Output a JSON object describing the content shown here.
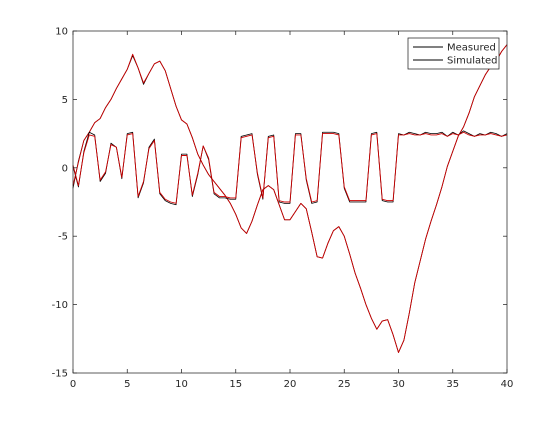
{
  "chart_data": {
    "type": "line",
    "title": "",
    "xlabel": "",
    "ylabel": "",
    "xlim": [
      0,
      40
    ],
    "ylim": [
      -15,
      10
    ],
    "xticks": [
      0,
      5,
      10,
      15,
      20,
      25,
      30,
      35,
      40
    ],
    "yticks": [
      -15,
      -10,
      -5,
      0,
      5,
      10
    ],
    "grid": false,
    "legend": {
      "position": "top-right",
      "entries": [
        "Measured",
        "Simulated"
      ]
    },
    "series": [
      {
        "name": "Measured",
        "color": "#000000",
        "role": "signal-1",
        "x": [
          0,
          0.5,
          1,
          1.5,
          2,
          2.5,
          3,
          3.5,
          4,
          4.5,
          5,
          5.5,
          6,
          6.5,
          7,
          7.5,
          8,
          8.5,
          9,
          9.5,
          10,
          10.5,
          11,
          11.5,
          12,
          12.5,
          13,
          13.5,
          14,
          14.5,
          15,
          15.5,
          16,
          16.5,
          17,
          17.5,
          18,
          18.5,
          19,
          19.5,
          20,
          20.5,
          21,
          21.5,
          22,
          22.5,
          23,
          23.5,
          24,
          24.5,
          25,
          25.5,
          26,
          26.5,
          27,
          27.5,
          28,
          28.5,
          29,
          29.5,
          30,
          30.5,
          31,
          31.5,
          32,
          32.5,
          33,
          33.5,
          34,
          34.5,
          35,
          35.5,
          36,
          36.5,
          37,
          37.5,
          38,
          38.5,
          39,
          39.5,
          40
        ],
        "y": [
          -1.5,
          0.5,
          2.0,
          2.6,
          3.3,
          3.6,
          4.4,
          5.0,
          5.8,
          6.5,
          7.2,
          8.2,
          7.3,
          6.1,
          6.9,
          7.6,
          7.8,
          7.1,
          5.8,
          4.5,
          3.5,
          3.2,
          2.2,
          1.0,
          0.2,
          -0.5,
          -1.0,
          -1.5,
          -2.0,
          -2.6,
          -3.4,
          -4.4,
          -4.8,
          -3.9,
          -2.7,
          -1.6,
          -1.3,
          -1.6,
          -2.7,
          -3.8,
          -3.8,
          -3.2,
          -2.6,
          -3.0,
          -4.7,
          -6.5,
          -6.6,
          -5.5,
          -4.6,
          -4.3,
          -5.0,
          -6.3,
          -7.7,
          -8.8,
          -10.0,
          -11.0,
          -11.8,
          -11.2,
          -11.1,
          -12.2,
          -13.5,
          -12.6,
          -10.6,
          -8.4,
          -6.8,
          -5.2,
          -3.9,
          -2.7,
          -1.4,
          0.1,
          1.2,
          2.3,
          3.0,
          4.0,
          5.2,
          6.0,
          6.8,
          7.4,
          7.8,
          8.5,
          9.0
        ]
      },
      {
        "name": "Simulated",
        "color": "#cc0000",
        "role": "signal-1",
        "x": [
          0,
          0.5,
          1,
          1.5,
          2,
          2.5,
          3,
          3.5,
          4,
          4.5,
          5,
          5.5,
          6,
          6.5,
          7,
          7.5,
          8,
          8.5,
          9,
          9.5,
          10,
          10.5,
          11,
          11.5,
          12,
          12.5,
          13,
          13.5,
          14,
          14.5,
          15,
          15.5,
          16,
          16.5,
          17,
          17.5,
          18,
          18.5,
          19,
          19.5,
          20,
          20.5,
          21,
          21.5,
          22,
          22.5,
          23,
          23.5,
          24,
          24.5,
          25,
          25.5,
          26,
          26.5,
          27,
          27.5,
          28,
          28.5,
          29,
          29.5,
          30,
          30.5,
          31,
          31.5,
          32,
          32.5,
          33,
          33.5,
          34,
          34.5,
          35,
          35.5,
          36,
          36.5,
          37,
          37.5,
          38,
          38.5,
          39,
          39.5,
          40
        ],
        "y": [
          -1.3,
          0.4,
          2.0,
          2.6,
          3.3,
          3.6,
          4.4,
          5.0,
          5.8,
          6.5,
          7.2,
          8.3,
          7.3,
          6.2,
          6.9,
          7.6,
          7.8,
          7.1,
          5.8,
          4.5,
          3.5,
          3.2,
          2.2,
          1.0,
          0.2,
          -0.5,
          -1.0,
          -1.5,
          -2.0,
          -2.6,
          -3.4,
          -4.4,
          -4.8,
          -3.9,
          -2.7,
          -1.6,
          -1.3,
          -1.6,
          -2.7,
          -3.8,
          -3.8,
          -3.2,
          -2.6,
          -3.0,
          -4.7,
          -6.5,
          -6.6,
          -5.5,
          -4.6,
          -4.3,
          -5.0,
          -6.3,
          -7.7,
          -8.8,
          -10.0,
          -11.0,
          -11.8,
          -11.2,
          -11.1,
          -12.2,
          -13.5,
          -12.6,
          -10.6,
          -8.4,
          -6.8,
          -5.2,
          -3.9,
          -2.7,
          -1.4,
          0.1,
          1.2,
          2.3,
          3.0,
          4.0,
          5.2,
          6.0,
          6.8,
          7.4,
          7.8,
          8.5,
          9.0
        ]
      },
      {
        "name": "Measured",
        "color": "#000000",
        "role": "signal-2",
        "x": [
          0,
          0.5,
          1,
          1.5,
          2,
          2.5,
          3,
          3.5,
          4,
          4.5,
          5,
          5.5,
          6,
          6.5,
          7,
          7.5,
          8,
          8.5,
          9,
          9.5,
          10,
          10.5,
          11,
          11.5,
          12,
          12.5,
          13,
          13.5,
          14,
          14.5,
          15,
          15.5,
          16,
          16.5,
          17,
          17.5,
          18,
          18.5,
          19,
          19.5,
          20,
          20.5,
          21,
          21.5,
          22,
          22.5,
          23,
          23.5,
          24,
          24.5,
          25,
          25.5,
          26,
          26.5,
          27,
          27.5,
          28,
          28.5,
          29,
          29.5,
          30,
          30.5,
          31,
          31.5,
          32,
          32.5,
          33,
          33.5,
          34,
          34.5,
          35,
          35.5,
          36,
          36.5,
          37,
          37.5,
          38,
          38.5,
          39,
          39.5,
          40
        ],
        "y": [
          0.1,
          -1.4,
          1.2,
          2.6,
          2.4,
          -1.0,
          -0.4,
          1.8,
          1.5,
          -0.8,
          2.5,
          2.6,
          -2.2,
          -1.1,
          1.5,
          2.1,
          -1.9,
          -2.4,
          -2.6,
          -2.7,
          1.0,
          1.0,
          -2.1,
          -0.5,
          1.6,
          0.6,
          -1.9,
          -2.2,
          -2.2,
          -2.3,
          -2.3,
          2.3,
          2.4,
          2.5,
          -0.5,
          -2.3,
          2.3,
          2.4,
          -2.5,
          -2.6,
          -2.6,
          2.5,
          2.5,
          -0.9,
          -2.6,
          -2.5,
          2.6,
          2.6,
          2.6,
          2.5,
          -1.5,
          -2.5,
          -2.5,
          -2.5,
          -2.5,
          2.5,
          2.6,
          -2.4,
          -2.5,
          -2.5,
          2.5,
          2.4,
          2.6,
          2.5,
          2.4,
          2.6,
          2.5,
          2.5,
          2.6,
          2.3,
          2.6,
          2.4,
          2.7,
          2.5,
          2.3,
          2.5,
          2.4,
          2.6,
          2.5,
          2.3,
          2.5
        ]
      },
      {
        "name": "Simulated",
        "color": "#cc0000",
        "role": "signal-2",
        "x": [
          0,
          0.5,
          1,
          1.5,
          2,
          2.5,
          3,
          3.5,
          4,
          4.5,
          5,
          5.5,
          6,
          6.5,
          7,
          7.5,
          8,
          8.5,
          9,
          9.5,
          10,
          10.5,
          11,
          11.5,
          12,
          12.5,
          13,
          13.5,
          14,
          14.5,
          15,
          15.5,
          16,
          16.5,
          17,
          17.5,
          18,
          18.5,
          19,
          19.5,
          20,
          20.5,
          21,
          21.5,
          22,
          22.5,
          23,
          23.5,
          24,
          24.5,
          25,
          25.5,
          26,
          26.5,
          27,
          27.5,
          28,
          28.5,
          29,
          29.5,
          30,
          30.5,
          31,
          31.5,
          32,
          32.5,
          33,
          33.5,
          34,
          34.5,
          35,
          35.5,
          36,
          36.5,
          37,
          37.5,
          38,
          38.5,
          39,
          39.5,
          40
        ],
        "y": [
          0.2,
          -1.3,
          1.1,
          2.4,
          2.3,
          -0.9,
          -0.3,
          1.7,
          1.5,
          -0.7,
          2.4,
          2.5,
          -2.1,
          -1.0,
          1.4,
          2.0,
          -1.8,
          -2.3,
          -2.5,
          -2.6,
          0.9,
          0.9,
          -2.0,
          -0.4,
          1.6,
          0.7,
          -1.8,
          -2.1,
          -2.1,
          -2.2,
          -2.2,
          2.2,
          2.3,
          2.4,
          -0.4,
          -2.2,
          2.2,
          2.3,
          -2.4,
          -2.5,
          -2.5,
          2.4,
          2.4,
          -0.8,
          -2.5,
          -2.4,
          2.5,
          2.5,
          2.5,
          2.4,
          -1.4,
          -2.4,
          -2.4,
          -2.4,
          -2.4,
          2.4,
          2.5,
          -2.3,
          -2.4,
          -2.4,
          2.4,
          2.4,
          2.5,
          2.4,
          2.4,
          2.5,
          2.4,
          2.4,
          2.5,
          2.3,
          2.5,
          2.4,
          2.6,
          2.4,
          2.3,
          2.4,
          2.4,
          2.5,
          2.4,
          2.3,
          2.4
        ]
      }
    ]
  },
  "style": {
    "axis_color": "#262626",
    "box_color": "#262626",
    "background": "#ffffff"
  }
}
